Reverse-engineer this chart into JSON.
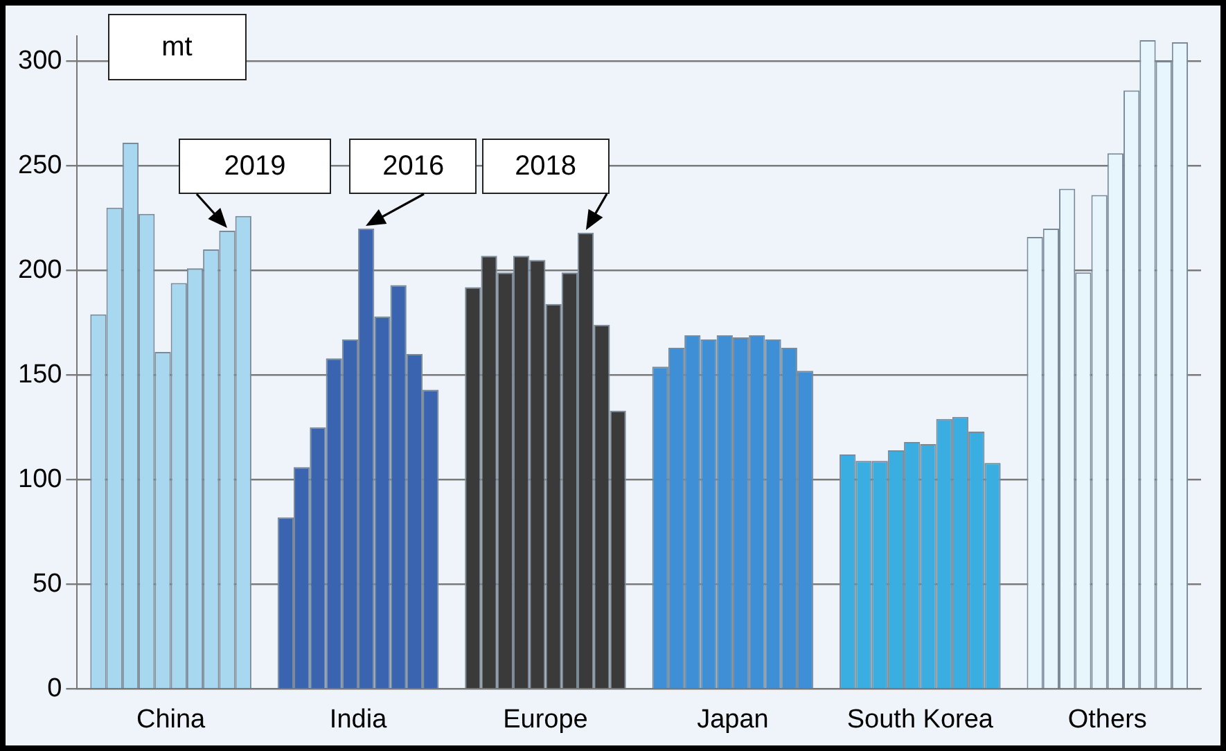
{
  "chart_data": {
    "type": "bar",
    "ylabel": "mt",
    "categories": [
      "China",
      "India",
      "Europe",
      "Japan",
      "South Korea",
      "Others"
    ],
    "series": [
      {
        "colors": [
          "#a8d8f0",
          "#3a64b0",
          "#3a3a3a",
          "#3f8fd6",
          "#3aaee0",
          "#e6f6fc"
        ],
        "values": [
          179,
          82,
          192,
          154,
          112,
          216
        ]
      },
      {
        "colors": [
          "#a8d8f0",
          "#3a64b0",
          "#3a3a3a",
          "#3f8fd6",
          "#3aaee0",
          "#e6f6fc"
        ],
        "values": [
          230,
          106,
          207,
          163,
          109,
          220
        ]
      },
      {
        "colors": [
          "#a8d8f0",
          "#3a64b0",
          "#3a3a3a",
          "#3f8fd6",
          "#3aaee0",
          "#e6f6fc"
        ],
        "values": [
          261,
          125,
          199,
          169,
          109,
          239
        ]
      },
      {
        "colors": [
          "#a8d8f0",
          "#3a64b0",
          "#3a3a3a",
          "#3f8fd6",
          "#3aaee0",
          "#e6f6fc"
        ],
        "values": [
          227,
          158,
          207,
          167,
          114,
          199
        ]
      },
      {
        "colors": [
          "#a8d8f0",
          "#3a64b0",
          "#3a3a3a",
          "#3f8fd6",
          "#3aaee0",
          "#e6f6fc"
        ],
        "values": [
          161,
          167,
          205,
          169,
          118,
          236
        ]
      },
      {
        "colors": [
          "#a8d8f0",
          "#3a64b0",
          "#3a3a3a",
          "#3f8fd6",
          "#3aaee0",
          "#e6f6fc"
        ],
        "values": [
          194,
          220,
          184,
          168,
          117,
          256
        ]
      },
      {
        "colors": [
          "#a8d8f0",
          "#3a64b0",
          "#3a3a3a",
          "#3f8fd6",
          "#3aaee0",
          "#e6f6fc"
        ],
        "values": [
          201,
          178,
          199,
          169,
          129,
          286
        ]
      },
      {
        "colors": [
          "#a8d8f0",
          "#3a64b0",
          "#3a3a3a",
          "#3f8fd6",
          "#3aaee0",
          "#e6f6fc"
        ],
        "values": [
          210,
          193,
          218,
          167,
          130,
          310
        ]
      },
      {
        "colors": [
          "#a8d8f0",
          "#3a64b0",
          "#3a3a3a",
          "#3f8fd6",
          "#3aaee0",
          "#e6f6fc"
        ],
        "values": [
          219,
          160,
          174,
          163,
          123,
          300
        ]
      },
      {
        "colors": [
          "#a8d8f0",
          "#3a64b0",
          "#3a3a3a",
          "#3f8fd6",
          "#3aaee0",
          "#e6f6fc"
        ],
        "values": [
          226,
          143,
          133,
          152,
          108,
          309
        ]
      }
    ],
    "ylim": [
      0,
      312
    ],
    "yticks": [
      0,
      50,
      100,
      150,
      200,
      250,
      300
    ],
    "grid": "y",
    "legend": false,
    "annotations": [
      "2019",
      "2016",
      "2018"
    ]
  }
}
